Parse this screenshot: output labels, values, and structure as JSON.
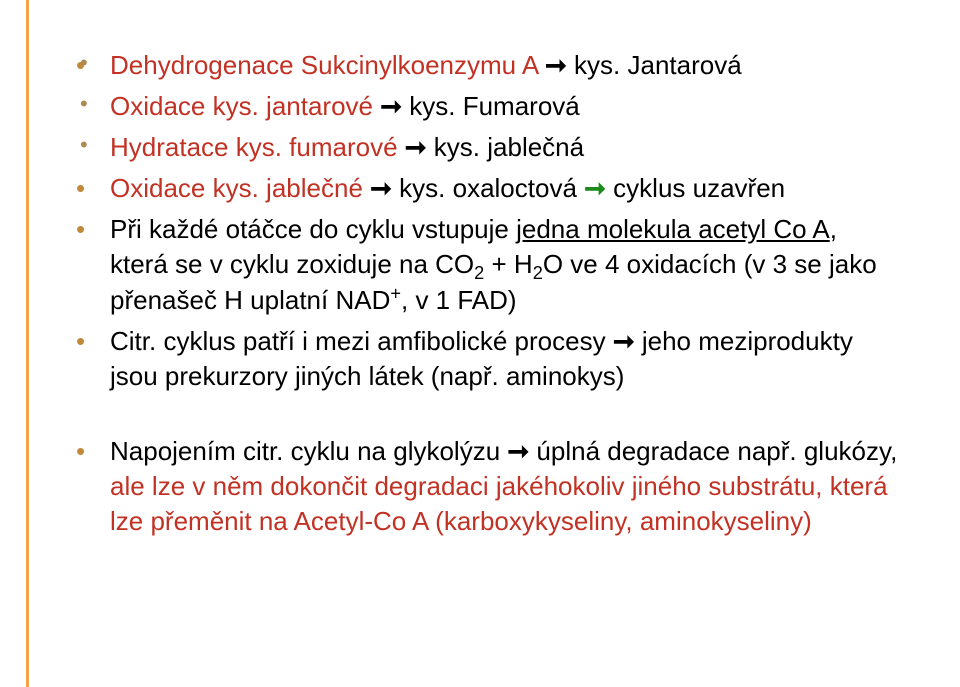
{
  "colors": {
    "accent_bar": "#f0a447",
    "bullet_l1": "#c08a3a",
    "bullet_l2": "#b08a55",
    "red": "#c23224",
    "green_arrow": "#1a8a1a",
    "text": "#000000",
    "background": "#ffffff"
  },
  "typography": {
    "family": "Trebuchet MS",
    "size_pt": 26,
    "line_height": 1.35
  },
  "l2_1a": "Dehydrogenace Sukcinylkoenzymu A ",
  "arr": "➞",
  "l2_1b": " kys. Jantarová",
  "l2_2a": "Oxidace kys. jantarové ",
  "l2_2b": " kys. Fumarová",
  "l2_3a": "Hydratace kys. fumarové ",
  "l2_3b": " kys. jablečná",
  "l1_1a": "Oxidace kys. jablečné ",
  "l1_1b": " kys. oxaloctová ",
  "l1_1c": " cyklus uzavřen",
  "l1_2a": "Při každé otáčce do cyklu vstupuje ",
  "l1_2b": "jedna molekula acetyl Co A",
  "l1_2c": ", která se v cyklu zoxiduje na ",
  "l1_2d_pre": "CO",
  "l1_2d_sub": "2",
  "l1_2d_mid": " + H",
  "l1_2d_sub2": "2",
  "l1_2d_post": "O",
  "l1_2e": " ve 4 oxidacích (v 3 se jako přenašeč H uplatní NAD",
  "l1_2f_sup": "+",
  "l1_2g": ", v 1 FAD)",
  "l1_3a": "Citr. cyklus patří i mezi amfibolické procesy ",
  "l1_3b": " jeho meziprodukty jsou prekurzory jiných látek (např. aminokys)",
  "l1_4a": "Napojením citr. cyklu na glykolýzu ",
  "l1_4b": " úplná degradace např. glukózy, ",
  "l1_4c": "ale lze v něm dokončit degradaci jakéhokoliv jiného substrátu, která lze přeměnit na Acetyl-Co A (karboxykyseliny, aminokyseliny)"
}
